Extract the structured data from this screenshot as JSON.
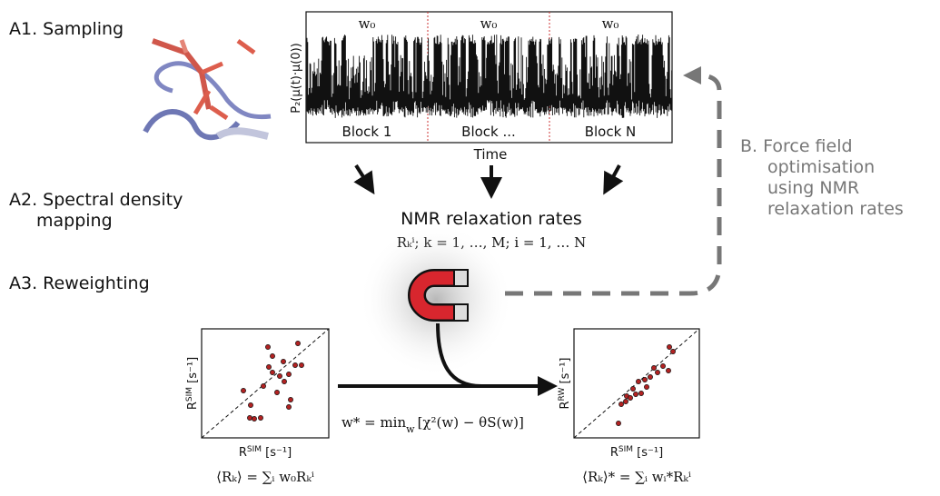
{
  "panels": {
    "sampling": "A1. Sampling",
    "spectral": [
      "A2. Spectral density",
      "mapping"
    ],
    "reweighting": "A3. Reweighting",
    "force_field": [
      "B. Force field",
      "optimisation",
      "using NMR",
      "relaxation rates"
    ]
  },
  "trace": {
    "y_label": "P₂(μ(t)·μ(0))",
    "x_label": "Time",
    "blocks": [
      {
        "weight": "w₀",
        "label": "Block 1"
      },
      {
        "weight": "w₀",
        "label": "Block ..."
      },
      {
        "weight": "w₀",
        "label": "Block N"
      }
    ]
  },
  "rates": {
    "title": "NMR relaxation rates",
    "formula": "Rₖⁱ; k = 1, …, M; i = 1, … N"
  },
  "optimisation": {
    "lhs": "w* = min",
    "sub": "w",
    "rhs": "[χ²(w) − θS(w)]"
  },
  "before": {
    "y_label": {
      "symbol": "R",
      "superscript": "SIM",
      "unit": " [s⁻¹]"
    },
    "x_label": {
      "symbol": "R",
      "superscript": "SIM",
      "unit": " [s⁻¹]"
    },
    "formula": "⟨Rₖ⟩ = ∑ᵢ w₀Rₖⁱ"
  },
  "after": {
    "y_label": {
      "symbol": "R",
      "superscript": "RW",
      "unit": " [s⁻¹]"
    },
    "x_label": {
      "symbol": "R",
      "superscript": "SIM",
      "unit": " [s⁻¹]"
    },
    "formula": "⟨Rₖ⟩* = ∑ᵢ wᵢ*Rₖⁱ"
  }
}
